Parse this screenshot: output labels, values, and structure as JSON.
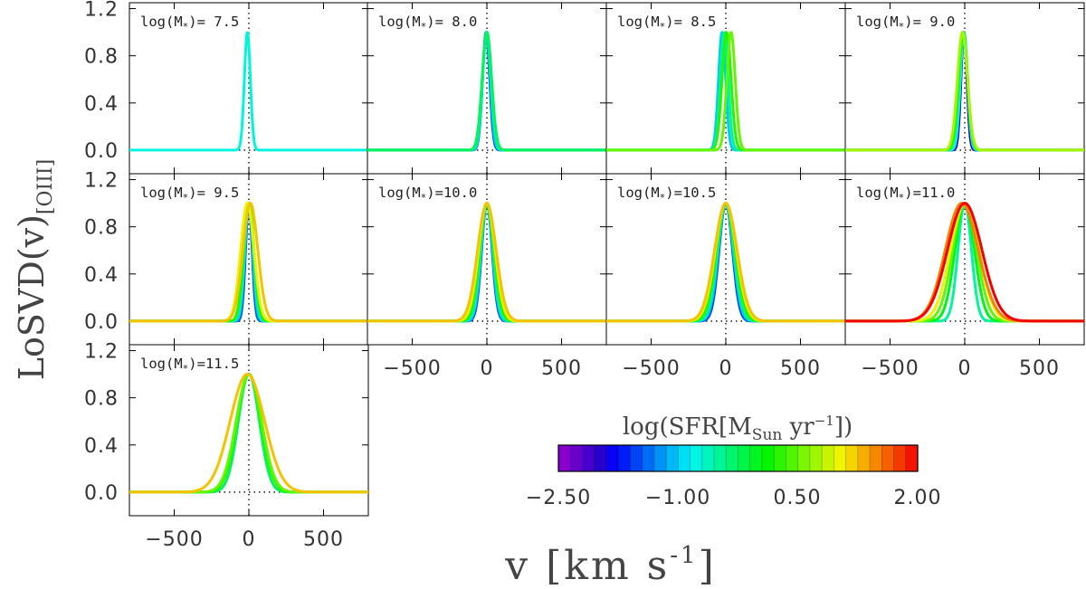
{
  "chart_data": {
    "type": "line",
    "ylabel_main": "LoSVD(v)",
    "ylabel_sub": "[OIII]",
    "xlabel_main": "v [km s",
    "xlabel_sup": "-1",
    "xlabel_end": "]",
    "xlim": [
      -800,
      800
    ],
    "ylim": [
      -0.2,
      1.25
    ],
    "xticks": [
      -500,
      0,
      500
    ],
    "xtick_labels": [
      "−500",
      "0",
      "500"
    ],
    "yticks": [
      0.0,
      0.4,
      0.8,
      1.2
    ],
    "ytick_labels": [
      "0.0",
      "0.4",
      "0.8",
      "1.2"
    ],
    "label_prefix": "log(M",
    "label_sub": "*",
    "label_suffix": ")=",
    "colorbar": {
      "title_pre": "log(SFR[M",
      "title_sub": "Sun",
      "title_mid": " yr",
      "title_sup": "−1",
      "title_end": "])",
      "range": [
        -2.5,
        2.0
      ],
      "tick_labels": [
        "−2.50",
        "−1.00",
        "0.50",
        "2.00"
      ]
    },
    "panels": [
      {
        "mass": " 7.5",
        "series": [
          {
            "sfr": -0.75,
            "center": -10,
            "sigma": 20
          }
        ]
      },
      {
        "mass": " 8.0",
        "series": [
          {
            "sfr": -1.5,
            "center": -5,
            "sigma": 24
          },
          {
            "sfr": -1.0,
            "center": -3,
            "sigma": 26
          },
          {
            "sfr": -0.5,
            "center": 0,
            "sigma": 29
          },
          {
            "sfr": -0.25,
            "center": 0,
            "sigma": 32
          }
        ]
      },
      {
        "mass": " 8.5",
        "series": [
          {
            "sfr": -1.0,
            "center": -25,
            "sigma": 24
          },
          {
            "sfr": -0.5,
            "center": -10,
            "sigma": 26
          },
          {
            "sfr": 0.25,
            "center": 5,
            "sigma": 30
          },
          {
            "sfr": 0.5,
            "center": 35,
            "sigma": 28
          }
        ]
      },
      {
        "mass": " 9.0",
        "series": [
          {
            "sfr": -2.0,
            "center": -5,
            "sigma": 20
          },
          {
            "sfr": -0.75,
            "center": -5,
            "sigma": 24
          },
          {
            "sfr": 0.25,
            "center": -10,
            "sigma": 30
          },
          {
            "sfr": 0.75,
            "center": -15,
            "sigma": 34
          }
        ]
      },
      {
        "mass": " 9.5",
        "series": [
          {
            "sfr": -1.5,
            "center": 0,
            "sigma": 22
          },
          {
            "sfr": -1.0,
            "center": 0,
            "sigma": 26
          },
          {
            "sfr": -0.5,
            "center": 0,
            "sigma": 30
          },
          {
            "sfr": 0.25,
            "center": 0,
            "sigma": 35
          },
          {
            "sfr": 1.0,
            "center": -10,
            "sigma": 45
          },
          {
            "sfr": 1.25,
            "center": 10,
            "sigma": 50
          }
        ]
      },
      {
        "mass": "10.0",
        "series": [
          {
            "sfr": -1.5,
            "center": 0,
            "sigma": 35
          },
          {
            "sfr": -1.0,
            "center": 0,
            "sigma": 38
          },
          {
            "sfr": -0.5,
            "center": 0,
            "sigma": 42
          },
          {
            "sfr": 0.25,
            "center": 0,
            "sigma": 48
          },
          {
            "sfr": 1.0,
            "center": 0,
            "sigma": 55
          },
          {
            "sfr": 1.25,
            "center": 0,
            "sigma": 62
          }
        ]
      },
      {
        "mass": "10.5",
        "series": [
          {
            "sfr": -1.5,
            "center": 0,
            "sigma": 45
          },
          {
            "sfr": -1.0,
            "center": 0,
            "sigma": 50
          },
          {
            "sfr": -0.5,
            "center": 0,
            "sigma": 55
          },
          {
            "sfr": 0.25,
            "center": 0,
            "sigma": 62
          },
          {
            "sfr": 1.0,
            "center": 0,
            "sigma": 70
          },
          {
            "sfr": 1.25,
            "center": 0,
            "sigma": 75
          }
        ]
      },
      {
        "mass": "11.0",
        "series": [
          {
            "sfr": -0.5,
            "center": 0,
            "sigma": 45
          },
          {
            "sfr": 0.0,
            "center": 0,
            "sigma": 65
          },
          {
            "sfr": 0.5,
            "center": 0,
            "sigma": 80
          },
          {
            "sfr": 1.0,
            "center": 0,
            "sigma": 95
          },
          {
            "sfr": 1.5,
            "center": -20,
            "sigma": 110
          },
          {
            "sfr": 2.0,
            "center": 0,
            "sigma": 115
          }
        ]
      },
      {
        "mass": "11.5",
        "series": [
          {
            "sfr": -0.25,
            "center": 0,
            "sigma": 70
          },
          {
            "sfr": 0.25,
            "center": 0,
            "sigma": 80
          },
          {
            "sfr": 0.5,
            "center": 0,
            "sigma": 85
          },
          {
            "sfr": 1.25,
            "center": -10,
            "sigma": 115
          }
        ]
      }
    ]
  }
}
